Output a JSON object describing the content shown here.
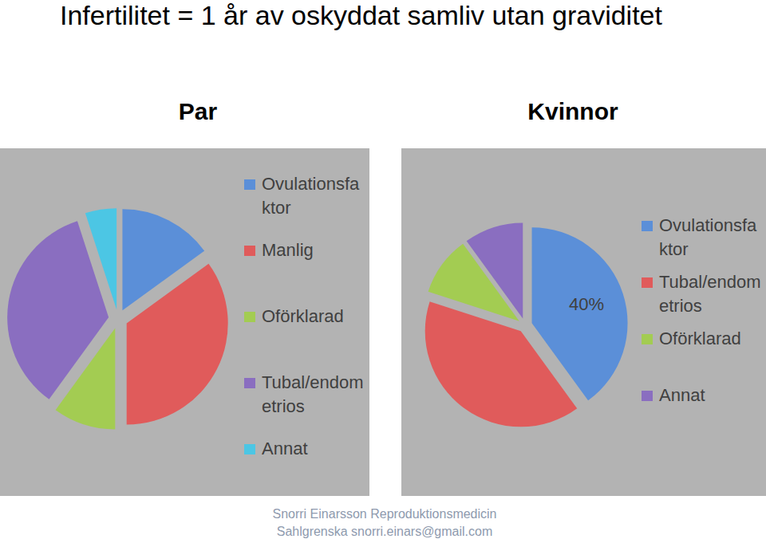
{
  "title": "Infertilitet = 1 år av oskyddat samliv utan graviditet",
  "footer": [
    "Snorri Einarsson Reproduktionsmedicin",
    "Sahlgrenska snorri.einars@gmail.com"
  ],
  "chart_data": [
    {
      "type": "pie",
      "title": "Par",
      "categories": [
        "Ovulationsfaktor",
        "Manlig",
        "Oförklarad",
        "Tubal/endometrios",
        "Annat"
      ],
      "values": [
        15,
        35,
        10,
        35,
        5
      ],
      "colors": [
        "#5b8fd8",
        "#e05b5b",
        "#a3cc52",
        "#8a6ec0",
        "#4cc6e4"
      ],
      "legend": "right"
    },
    {
      "type": "pie",
      "title": "Kvinnor",
      "categories": [
        "Ovulationsfaktor",
        "Tubal/endometrios",
        "Oförklarad",
        "Annat"
      ],
      "values": [
        40,
        40,
        10,
        10
      ],
      "value_labels": [
        "40%",
        null,
        null,
        null
      ],
      "data_labels": true,
      "colors": [
        "#5b8fd8",
        "#e05b5b",
        "#a3cc52",
        "#8a6ec0"
      ],
      "legend": "right"
    }
  ]
}
